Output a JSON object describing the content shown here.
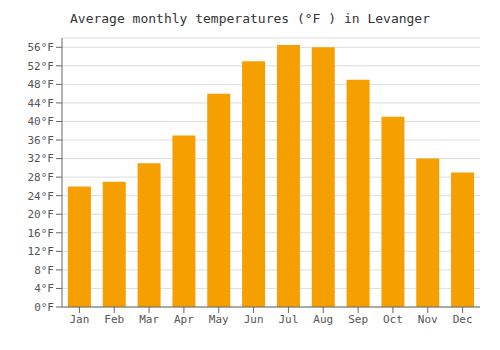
{
  "chart_data": {
    "type": "bar",
    "title": "Average monthly temperatures (°F ) in Levanger",
    "categories": [
      "Jan",
      "Feb",
      "Mar",
      "Apr",
      "May",
      "Jun",
      "Jul",
      "Aug",
      "Sep",
      "Oct",
      "Nov",
      "Dec"
    ],
    "values": [
      26.0,
      27.0,
      31.0,
      37.0,
      46.0,
      53.0,
      56.5,
      56.0,
      49.0,
      41.0,
      32.0,
      29.0
    ],
    "color": "#F5A000",
    "ylim": [
      0,
      58
    ],
    "yticks": [
      {
        "value": 0,
        "label": "0°F"
      },
      {
        "value": 4,
        "label": "4°F"
      },
      {
        "value": 8,
        "label": "8°F"
      },
      {
        "value": 12,
        "label": "12°F"
      },
      {
        "value": 16,
        "label": "16°F"
      },
      {
        "value": 20,
        "label": "20°F"
      },
      {
        "value": 24,
        "label": "24°F"
      },
      {
        "value": 28,
        "label": "28°F"
      },
      {
        "value": 32,
        "label": "32°F"
      },
      {
        "value": 36,
        "label": "36°F"
      },
      {
        "value": 40,
        "label": "40°F"
      },
      {
        "value": 44,
        "label": "44°F"
      },
      {
        "value": 48,
        "label": "48°F"
      },
      {
        "value": 52,
        "label": "52°F"
      },
      {
        "value": 56,
        "label": "56°F"
      }
    ],
    "grid": true
  }
}
